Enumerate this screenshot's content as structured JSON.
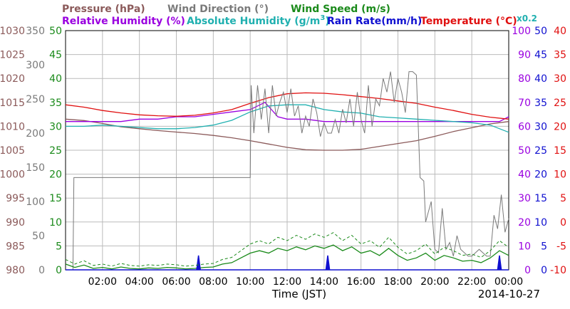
{
  "legend": {
    "pressure": "Pressure (hPa)",
    "wind_direction": "Wind Direction (°)",
    "wind_speed": "Wind Speed (m/s)",
    "relative_humidity": "Relative Humidity (%)",
    "absolute_humidity": "Absolute Humidity (g/m",
    "absolute_humidity_sup": "3",
    "absolute_humidity_end": ")",
    "rain_rate": "Rain Rate(mm/h)",
    "temperature": "Temperature (°C)",
    "rain_scale_note": "x0.2"
  },
  "colors": {
    "pressure": "#8b5a5a",
    "wind_direction": "#7a7a7a",
    "wind_speed": "#1a8a1a",
    "relative_humidity": "#9a00e0",
    "absolute_humidity": "#20b0b0",
    "rain_rate": "#1010d0",
    "temperature": "#e01010",
    "grid": "#bbbbbb"
  },
  "chart_data": {
    "type": "line",
    "xlabel": "Time (JST)",
    "date": "2014-10-27",
    "x_range_hours": [
      0,
      24
    ],
    "x_ticks": [
      "02:00",
      "04:00",
      "06:00",
      "08:00",
      "10:00",
      "12:00",
      "14:00",
      "16:00",
      "18:00",
      "20:00",
      "22:00",
      "00:00"
    ],
    "axes": {
      "pressure": {
        "ticks": [
          "1030",
          "1025",
          "1020",
          "1015",
          "1010",
          "1005",
          "1000",
          "995",
          "990",
          "985",
          "980"
        ],
        "range": [
          980,
          1030
        ]
      },
      "wind_direction": {
        "ticks": [
          "350",
          "300",
          "250",
          "200",
          "150",
          "100",
          "50",
          "0"
        ],
        "range": [
          0,
          350
        ]
      },
      "wind_speed": {
        "ticks": [
          "50",
          "45",
          "40",
          "35",
          "30",
          "25",
          "20",
          "15",
          "10",
          "5",
          "0"
        ],
        "range": [
          0,
          50
        ]
      },
      "relative_humidity": {
        "ticks": [
          "100",
          "90",
          "80",
          "70",
          "60",
          "50",
          "40",
          "30",
          "20",
          "10",
          "0"
        ],
        "range": [
          0,
          100
        ]
      },
      "rain_rate": {
        "ticks": [
          "50",
          "45",
          "40",
          "35",
          "30",
          "25",
          "20",
          "15",
          "10",
          "5",
          "0"
        ],
        "range": [
          0,
          50
        ]
      },
      "temperature": {
        "ticks": [
          "40",
          "35",
          "30",
          "25",
          "20",
          "15",
          "10",
          "5",
          "0",
          "-5",
          "-10"
        ],
        "range": [
          -10,
          40
        ]
      }
    },
    "series": [
      {
        "name": "Pressure (hPa)",
        "key": "pressure",
        "x": [
          0,
          1,
          2,
          3,
          4,
          5,
          6,
          7,
          8,
          9,
          10,
          11,
          12,
          13,
          14,
          15,
          16,
          17,
          18,
          19,
          20,
          21,
          22,
          23,
          24
        ],
        "y": [
          1011.5,
          1011.2,
          1010.6,
          1009.9,
          1009.5,
          1009.1,
          1008.8,
          1008.5,
          1008.1,
          1007.6,
          1007.0,
          1006.3,
          1005.6,
          1005.1,
          1005.0,
          1005.0,
          1005.2,
          1005.8,
          1006.4,
          1007.0,
          1007.9,
          1008.9,
          1009.7,
          1010.5,
          1011.0
        ]
      },
      {
        "name": "Relative Humidity (%)",
        "key": "relative_humidity",
        "x": [
          0,
          0.5,
          1,
          2,
          3,
          4,
          5,
          6,
          7,
          8,
          9,
          10,
          10.8,
          11.5,
          12,
          13,
          14,
          15,
          16,
          17,
          18,
          19,
          20,
          21,
          22,
          23,
          23.5,
          24
        ],
        "y": [
          62,
          62,
          62,
          62,
          62,
          63,
          63,
          64,
          64,
          65,
          66,
          67,
          70,
          64,
          63,
          63,
          62,
          62,
          62,
          62,
          62,
          62,
          62,
          62,
          62,
          62,
          62,
          64
        ]
      },
      {
        "name": "Absolute Humidity",
        "key": "absolute_humidity",
        "x": [
          0,
          1,
          2,
          3,
          4,
          5,
          6,
          7,
          8,
          9,
          10,
          11,
          12,
          13,
          14,
          15,
          16,
          17,
          18,
          19,
          20,
          21,
          22,
          23,
          24
        ],
        "y": [
          60.0,
          60.0,
          60.5,
          60.0,
          59.5,
          59.0,
          59.0,
          59.5,
          60.5,
          62.5,
          66.0,
          68.5,
          69.0,
          69.0,
          67.0,
          66.0,
          65.5,
          64.0,
          63.5,
          63.0,
          62.5,
          62.0,
          61.5,
          60.5,
          57.5
        ]
      },
      {
        "name": "Temperature (°C)",
        "key": "temperature",
        "x": [
          0,
          1,
          2,
          3,
          4,
          5,
          6,
          7,
          8,
          9,
          10,
          11,
          12,
          13,
          14,
          15,
          16,
          17,
          18,
          19,
          20,
          21,
          22,
          23,
          24
        ],
        "y": [
          24.5,
          24.0,
          23.3,
          22.8,
          22.4,
          22.2,
          22.1,
          22.3,
          22.8,
          23.5,
          24.8,
          26.0,
          26.8,
          27.0,
          26.9,
          26.6,
          26.2,
          25.8,
          25.3,
          24.8,
          24.0,
          23.3,
          22.5,
          21.9,
          21.5
        ]
      },
      {
        "name": "Wind Direction (°)",
        "key": "wind_direction",
        "x": [
          0,
          0.4,
          0.45,
          8.6,
          8.8,
          10.0,
          10.05,
          10.2,
          10.4,
          10.6,
          10.8,
          11.0,
          11.2,
          11.4,
          11.6,
          11.8,
          12.0,
          12.2,
          12.4,
          12.6,
          12.8,
          13.0,
          13.2,
          13.4,
          13.6,
          13.8,
          14.0,
          14.2,
          14.4,
          14.6,
          14.8,
          15.0,
          15.2,
          15.4,
          15.6,
          15.8,
          16.0,
          16.2,
          16.4,
          16.6,
          16.8,
          17.0,
          17.2,
          17.4,
          17.6,
          17.8,
          18.0,
          18.2,
          18.4,
          18.6,
          18.8,
          19.0,
          19.2,
          19.4,
          19.5,
          19.8,
          20.0,
          20.2,
          20.4,
          20.6,
          20.8,
          21.0,
          21.2,
          21.4,
          21.6,
          21.8,
          22.0,
          22.2,
          22.4,
          22.6,
          22.8,
          23.0,
          23.2,
          23.4,
          23.6,
          23.8,
          24.0
        ],
        "y": [
          0,
          0,
          135,
          135,
          135,
          135,
          270,
          200,
          270,
          220,
          265,
          200,
          270,
          225,
          245,
          260,
          230,
          265,
          225,
          240,
          200,
          225,
          210,
          250,
          230,
          195,
          215,
          200,
          200,
          220,
          200,
          235,
          215,
          250,
          210,
          260,
          220,
          200,
          270,
          210,
          250,
          240,
          280,
          260,
          290,
          245,
          280,
          260,
          230,
          290,
          290,
          285,
          135,
          130,
          70,
          100,
          30,
          25,
          90,
          30,
          40,
          20,
          50,
          30,
          25,
          20,
          20,
          25,
          30,
          25,
          20,
          20,
          80,
          60,
          110,
          55,
          75
        ]
      },
      {
        "name": "Wind Speed (m/s)",
        "key": "wind_speed",
        "x": [
          0,
          0.5,
          1,
          1.5,
          2,
          2.5,
          3,
          3.5,
          4,
          4.5,
          5,
          5.5,
          6,
          6.5,
          7,
          7.5,
          8,
          8.5,
          9,
          9.5,
          10,
          10.5,
          11,
          11.5,
          12,
          12.5,
          13,
          13.5,
          14,
          14.5,
          15,
          15.5,
          16,
          16.5,
          17,
          17.5,
          18,
          18.5,
          19,
          19.5,
          20,
          20.5,
          21,
          21.5,
          22,
          22.5,
          23,
          23.5,
          24
        ],
        "y": [
          1.2,
          0.5,
          1.0,
          0.3,
          0.5,
          0.2,
          0.6,
          0.3,
          0.2,
          0.4,
          0.3,
          0.5,
          0.4,
          0.2,
          0.3,
          0.5,
          0.6,
          1.2,
          1.5,
          2.5,
          3.5,
          4.0,
          3.5,
          4.5,
          4.0,
          4.8,
          4.2,
          5.0,
          4.5,
          5.2,
          4.0,
          4.8,
          3.5,
          4.0,
          3.0,
          4.5,
          3.0,
          2.0,
          2.5,
          3.5,
          2.0,
          3.0,
          2.5,
          1.8,
          2.0,
          1.5,
          2.5,
          4.0,
          3.0
        ]
      },
      {
        "name": "Rain Rate(mm/h)",
        "key": "rain_rate",
        "x": [
          0,
          7.0,
          7.1,
          7.2,
          7.3,
          7.4,
          14.0,
          14.1,
          14.2,
          14.3,
          14.4,
          23.3,
          23.4,
          23.5,
          23.6,
          24
        ],
        "y": [
          0,
          0,
          0,
          3.0,
          0,
          0,
          0,
          0,
          3.0,
          0,
          0,
          0,
          0,
          3.0,
          0,
          0
        ]
      }
    ]
  }
}
